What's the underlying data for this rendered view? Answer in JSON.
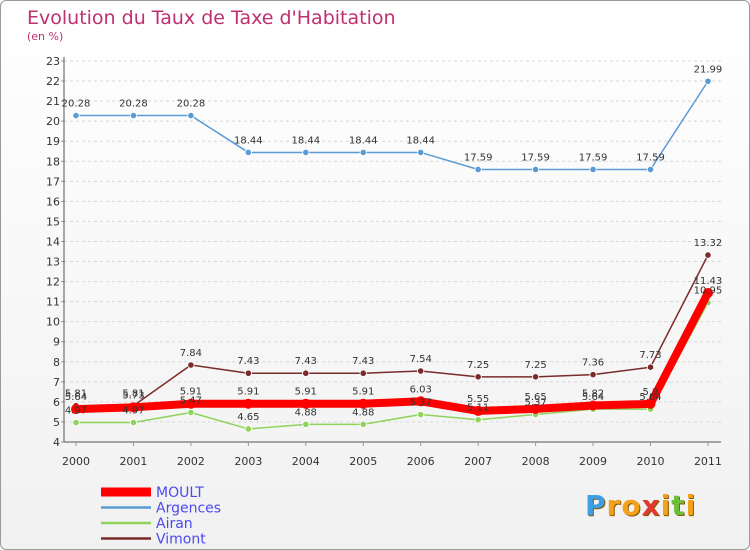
{
  "chart_data": {
    "type": "line",
    "title": "Evolution du Taux de Taxe d'Habitation",
    "subtitle": "(en %)",
    "x": [
      "2000",
      "2001",
      "2002",
      "2003",
      "2004",
      "2005",
      "2006",
      "2007",
      "2008",
      "2009",
      "2010",
      "2011"
    ],
    "ylim": [
      4,
      23
    ],
    "yticks": [
      4,
      5,
      6,
      7,
      8,
      9,
      10,
      11,
      12,
      13,
      14,
      15,
      16,
      17,
      18,
      19,
      20,
      21,
      22,
      23
    ],
    "grid": "horizontal",
    "legend_position": "bottom-left",
    "series": [
      {
        "name": "MOULT",
        "color": "#ff0000",
        "values": [
          5.64,
          5.73,
          5.91,
          5.91,
          5.91,
          5.91,
          6.03,
          5.55,
          5.65,
          5.82,
          5.9,
          11.43
        ],
        "labels": [
          "5.64",
          "5.73",
          "5.91",
          "5.91",
          "5.91",
          "5.91",
          "6.03",
          "5.55",
          "5.65",
          "5.82",
          "5.9",
          "11.43"
        ]
      },
      {
        "name": "Argences",
        "color": "#5b9bd5",
        "values": [
          20.28,
          20.28,
          20.28,
          18.44,
          18.44,
          18.44,
          18.44,
          17.59,
          17.59,
          17.59,
          17.59,
          21.99
        ],
        "labels": [
          "20.28",
          "20.28",
          "20.28",
          "18.44",
          "18.44",
          "18.44",
          "18.44",
          "17.59",
          "17.59",
          "17.59",
          "17.59",
          "21.99"
        ]
      },
      {
        "name": "Airan",
        "color": "#8fd35a",
        "values": [
          4.97,
          4.97,
          5.47,
          4.65,
          4.88,
          4.88,
          5.37,
          5.11,
          5.37,
          5.64,
          5.64,
          10.95
        ],
        "labels": [
          "4.97",
          "4.97",
          "5.47",
          "4.65",
          "4.88",
          "4.88",
          "5.37",
          "5.11",
          "5.37",
          "5.64",
          "5.64",
          "10.95"
        ]
      },
      {
        "name": "Vimont",
        "color": "#7b2a2a",
        "values": [
          5.81,
          5.81,
          7.84,
          7.43,
          7.43,
          7.43,
          7.54,
          7.25,
          7.25,
          7.36,
          7.73,
          13.32
        ],
        "labels": [
          "5.81",
          "5.81",
          "7.84",
          "7.43",
          "7.43",
          "7.43",
          "7.54",
          "7.25",
          "7.25",
          "7.36",
          "7.73",
          "13.32"
        ]
      }
    ]
  },
  "logo": {
    "text": "Proxiti",
    "letters": [
      "P",
      "r",
      "o",
      "x",
      "i",
      "t",
      "i"
    ],
    "colors": [
      "#3da0e6",
      "#f2a21c",
      "#f2a21c",
      "#e23a2e",
      "#f2a21c",
      "#6cbf3a",
      "#f2a21c"
    ]
  }
}
